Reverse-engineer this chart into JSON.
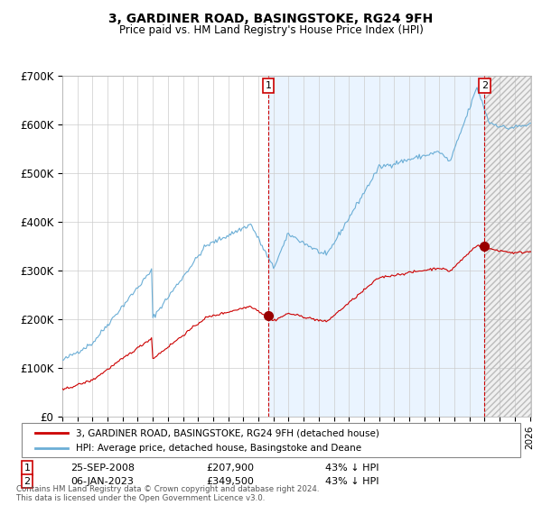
{
  "title": "3, GARDINER ROAD, BASINGSTOKE, RG24 9FH",
  "subtitle": "Price paid vs. HM Land Registry's House Price Index (HPI)",
  "ylim": [
    0,
    700000
  ],
  "yticks": [
    0,
    100000,
    200000,
    300000,
    400000,
    500000,
    600000,
    700000
  ],
  "ytick_labels": [
    "£0",
    "£100K",
    "£200K",
    "£300K",
    "£400K",
    "£500K",
    "£600K",
    "£700K"
  ],
  "hpi_color": "#6baed6",
  "price_color": "#cc0000",
  "marker_color": "#990000",
  "bg_fill_color": "#ddeeff",
  "vline_color": "#cc0000",
  "grid_color": "#cccccc",
  "purchase1_date": "25-SEP-2008",
  "purchase1_price": 207900,
  "purchase2_date": "06-JAN-2023",
  "purchase2_price": 349500,
  "purchase1_pct": "43% ↓ HPI",
  "purchase2_pct": "43% ↓ HPI",
  "legend_price_label": "3, GARDINER ROAD, BASINGSTOKE, RG24 9FH (detached house)",
  "legend_hpi_label": "HPI: Average price, detached house, Basingstoke and Deane",
  "footer": "Contains HM Land Registry data © Crown copyright and database right 2024.\nThis data is licensed under the Open Government Licence v3.0."
}
